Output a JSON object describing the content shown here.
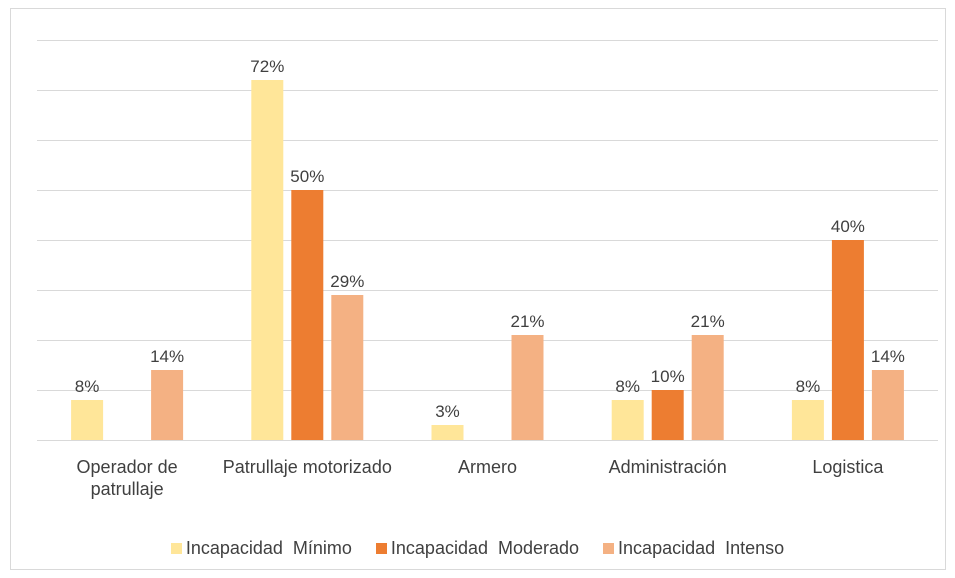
{
  "chart_data": {
    "type": "bar",
    "categories": [
      "Operador de patrullaje",
      "Patrullaje motorizado",
      "Armero",
      "Administración",
      "Logistica"
    ],
    "series": [
      {
        "name": "Incapacidad  Mínimo",
        "color": "#FFE699",
        "values": [
          8,
          72,
          3,
          8,
          8
        ],
        "value_labels": [
          "8%",
          "72%",
          "3%",
          "8%",
          "8%"
        ]
      },
      {
        "name": "Incapacidad  Moderado",
        "color": "#ED7D31",
        "values": [
          null,
          50,
          null,
          10,
          40
        ],
        "value_labels": [
          null,
          "50%",
          null,
          "10%",
          "40%"
        ]
      },
      {
        "name": "Incapacidad  Intenso",
        "color": "#F4B183",
        "values": [
          14,
          29,
          21,
          21,
          14
        ],
        "value_labels": [
          "14%",
          "29%",
          "21%",
          "21%",
          "14%"
        ]
      }
    ],
    "ylim": [
      0,
      80
    ],
    "yticks": [
      0,
      10,
      20,
      30,
      40,
      50,
      60,
      70,
      80
    ],
    "grid": true,
    "legend": "bottom"
  }
}
